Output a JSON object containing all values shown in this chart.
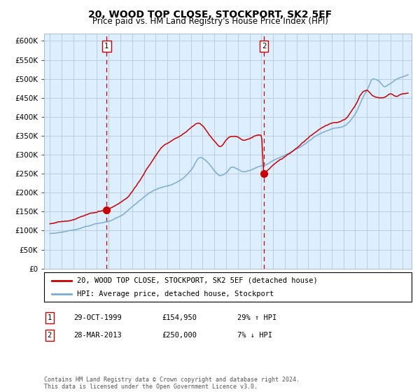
{
  "title": "20, WOOD TOP CLOSE, STOCKPORT, SK2 5EF",
  "subtitle": "Price paid vs. HM Land Registry's House Price Index (HPI)",
  "title_fontsize": 10,
  "subtitle_fontsize": 8.5,
  "legend_line1": "20, WOOD TOP CLOSE, STOCKPORT, SK2 5EF (detached house)",
  "legend_line2": "HPI: Average price, detached house, Stockport",
  "annotation1_label": "1",
  "annotation1_date": "29-OCT-1999",
  "annotation1_price": "£154,950",
  "annotation1_hpi": "29% ↑ HPI",
  "annotation2_label": "2",
  "annotation2_date": "28-MAR-2013",
  "annotation2_price": "£250,000",
  "annotation2_hpi": "7% ↓ HPI",
  "footer": "Contains HM Land Registry data © Crown copyright and database right 2024.\nThis data is licensed under the Open Government Licence v3.0.",
  "red_color": "#cc0000",
  "blue_color": "#7aadd4",
  "bg_color": "#ddeeff",
  "grid_color": "#bbccdd",
  "ylim": [
    0,
    620000
  ],
  "yticks": [
    0,
    50000,
    100000,
    150000,
    200000,
    250000,
    300000,
    350000,
    400000,
    450000,
    500000,
    550000,
    600000
  ],
  "sale1_x": 1999.83,
  "sale1_y": 154950,
  "sale2_x": 2013.23,
  "sale2_y": 250000,
  "xmin": 1994.5,
  "xmax": 2025.8
}
